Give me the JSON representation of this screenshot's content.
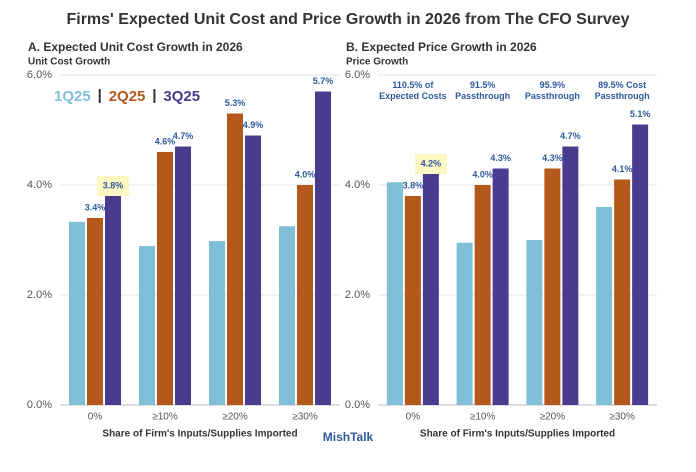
{
  "title": "Firms' Expected Unit Cost and Price Growth in 2026 from The CFO Survey",
  "source": "MishTalk",
  "chart_data": [
    {
      "type": "bar",
      "title": "A. Expected Unit Cost Growth in 2026",
      "ylabel": "Unit Cost Growth",
      "xlabel": "Share of Firm's Inputs/Supplies Imported",
      "categories": [
        "0%",
        "≥10%",
        "≥20%",
        "≥30%"
      ],
      "series": [
        {
          "name": "1Q25",
          "color": "#7fc0d8",
          "values": [
            3.33,
            2.89,
            2.98,
            3.25
          ]
        },
        {
          "name": "2Q25",
          "color": "#b5581c",
          "values": [
            3.4,
            4.6,
            5.3,
            4.0
          ],
          "value_labels": [
            "3.4%",
            "4.6%",
            "5.3%",
            "4.0%"
          ]
        },
        {
          "name": "3Q25",
          "color": "#4b3b8e",
          "values": [
            3.8,
            4.7,
            4.9,
            5.7
          ],
          "value_labels": [
            "3.8%",
            "4.7%",
            "4.9%",
            "5.7%"
          ]
        }
      ],
      "ylim": [
        0,
        6
      ],
      "yticks": [
        {
          "value": 0,
          "label": "0.0%"
        },
        {
          "value": 2,
          "label": "2.0%"
        },
        {
          "value": 4,
          "label": "4.0%"
        },
        {
          "value": 6,
          "label": "6.0%"
        }
      ],
      "grid": true,
      "legend": true
    },
    {
      "type": "bar",
      "title": "B. Expected Price Growth in 2026",
      "ylabel": "Price Growth",
      "xlabel": "Share of Firm's Inputs/Supplies Imported",
      "categories": [
        "0%",
        "≥10%",
        "≥20%",
        "≥30%"
      ],
      "annotations": [
        "110.5% of Expected Costs",
        "91.5% Passthrough",
        "95.9% Passthrough",
        "89.5% Cost Passthrough"
      ],
      "series": [
        {
          "name": "1Q25",
          "color": "#7fc0d8",
          "values": [
            4.05,
            2.95,
            3.0,
            3.6
          ]
        },
        {
          "name": "2Q25",
          "color": "#b5581c",
          "values": [
            3.8,
            4.0,
            4.3,
            4.1
          ],
          "value_labels": [
            "3.8%",
            "4.0%",
            "4.3%",
            "4.1%"
          ]
        },
        {
          "name": "3Q25",
          "color": "#4b3b8e",
          "values": [
            4.2,
            4.3,
            4.7,
            5.1
          ],
          "value_labels": [
            "4.2%",
            "4.3%",
            "4.7%",
            "5.1%"
          ]
        }
      ],
      "ylim": [
        0,
        6
      ],
      "yticks": [
        {
          "value": 0,
          "label": "0.0%"
        },
        {
          "value": 2,
          "label": "2.0%"
        },
        {
          "value": 4,
          "label": "4.0%"
        },
        {
          "value": 6,
          "label": "6.0%"
        }
      ],
      "grid": true,
      "legend": false
    }
  ]
}
